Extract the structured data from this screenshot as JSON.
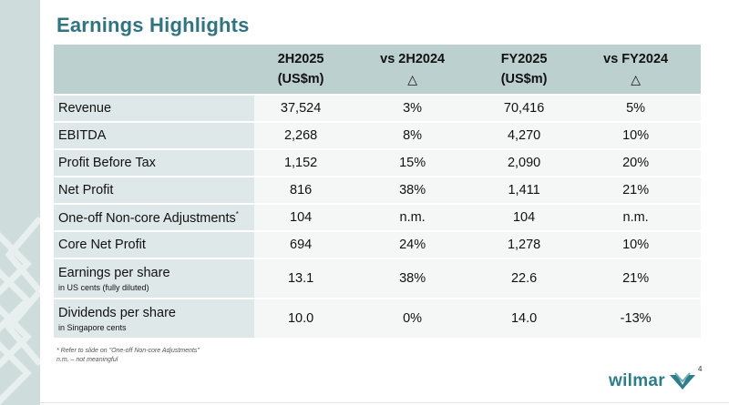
{
  "page": {
    "title": "Earnings Highlights",
    "page_number": "4",
    "logo": "wilmar"
  },
  "colors": {
    "title": "#2f7480",
    "header_bg": "#bcd0d0",
    "label_bg": "#dfe8e8",
    "value_bg": "#f5f7f7",
    "band": "#cfdcdc",
    "logo": "#2e7d8a"
  },
  "table": {
    "headers": [
      {
        "line1": "",
        "line2": ""
      },
      {
        "line1": "2H2025",
        "line2": "(US$m)"
      },
      {
        "line1": "vs 2H2024",
        "line2": "△"
      },
      {
        "line1": "FY2025",
        "line2": "(US$m)"
      },
      {
        "line1": "vs FY2024",
        "line2": "△"
      }
    ],
    "rows": [
      {
        "label": "Revenue",
        "sub": "",
        "mark": "",
        "values": [
          "37,524",
          "3%",
          "70,416",
          "5%"
        ]
      },
      {
        "label": "EBITDA",
        "sub": "",
        "mark": "",
        "values": [
          "2,268",
          "8%",
          "4,270",
          "10%"
        ]
      },
      {
        "label": "Profit Before Tax",
        "sub": "",
        "mark": "",
        "values": [
          "1,152",
          "15%",
          "2,090",
          "20%"
        ]
      },
      {
        "label": "Net Profit",
        "sub": "",
        "mark": "",
        "values": [
          "816",
          "38%",
          "1,411",
          "21%"
        ]
      },
      {
        "label": "One-off Non-core Adjustments",
        "sub": "",
        "mark": "*",
        "values": [
          "104",
          "n.m.",
          "104",
          "n.m."
        ]
      },
      {
        "label": "Core Net Profit",
        "sub": "",
        "mark": "",
        "values": [
          "694",
          "24%",
          "1,278",
          "10%"
        ]
      },
      {
        "label": "Earnings per share",
        "sub": "in US cents (fully diluted)",
        "mark": "",
        "values": [
          "13.1",
          "38%",
          "22.6",
          "21%"
        ]
      },
      {
        "label": "Dividends per share",
        "sub": "in Singapore cents",
        "mark": "",
        "values": [
          "10.0",
          "0%",
          "14.0",
          "-13%"
        ]
      }
    ]
  },
  "footnotes": [
    "* Refer to slide on \"One-off Non-core Adjustments\"",
    "n.m. – not meaningful"
  ]
}
